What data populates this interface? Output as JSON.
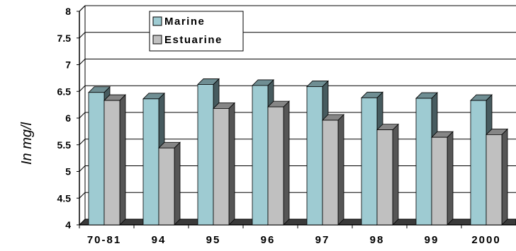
{
  "chart_data": {
    "type": "bar",
    "ylabel": "In mg/l",
    "ylim": [
      4,
      8
    ],
    "y_ticks": [
      "4",
      "4.5",
      "5",
      "5.5",
      "6",
      "6.5",
      "7",
      "7.5",
      "8"
    ],
    "grid": true,
    "legend_position": "top-left",
    "categories": [
      "70-81",
      "94",
      "95",
      "96",
      "97",
      "98",
      "99",
      "2000"
    ],
    "series": [
      {
        "name": "Marine",
        "color": "#9ecbd2",
        "values": [
          6.48,
          6.36,
          6.63,
          6.61,
          6.59,
          6.38,
          6.37,
          6.33
        ]
      },
      {
        "name": "Estuarine",
        "color": "#c0c0c0",
        "values": [
          6.33,
          5.44,
          6.18,
          6.21,
          5.96,
          5.78,
          5.64,
          5.69
        ]
      }
    ]
  }
}
